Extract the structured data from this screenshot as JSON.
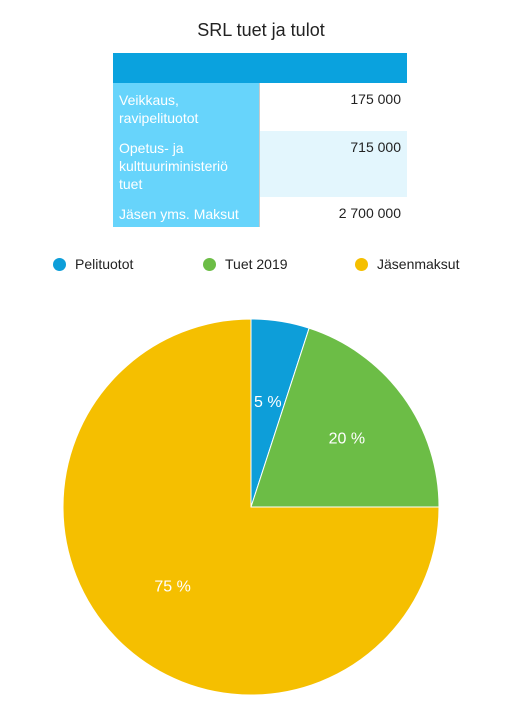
{
  "title": "SRL tuet ja tulot",
  "table": {
    "rows": [
      {
        "label": "Veikkaus,\nravipelituotot",
        "value": "175 000"
      },
      {
        "label": "Opetus- ja\nkulttuuriministeriö\ntuet",
        "value": "715 000"
      },
      {
        "label": "Jäsen yms. Maksut",
        "value": "2 700 000"
      }
    ]
  },
  "colors": {
    "header": "#0aa2de",
    "label_cell": "#67d4fb",
    "alt_row": "#e3f6fd"
  },
  "chart_data": {
    "type": "pie",
    "title": "SRL tuet ja tulot",
    "legend_position": "top",
    "categories": [
      "Pelituotot",
      "Tuet 2019",
      "Jäsenmaksut"
    ],
    "values": [
      5,
      20,
      75
    ],
    "labels": [
      "5 %",
      "20 %",
      "75 %"
    ],
    "colors": [
      "#0d9ed9",
      "#6cbd46",
      "#f5bf00"
    ]
  }
}
